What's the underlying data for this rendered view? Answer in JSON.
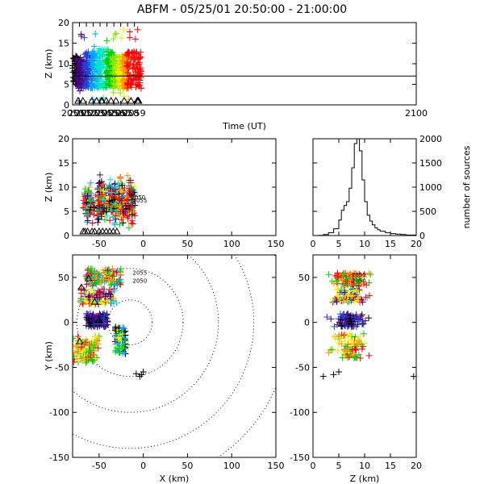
{
  "title": "ABFM - 05/25/01 20:50:00 - 21:00:00",
  "chart_data": [
    {
      "id": "time_height",
      "type": "scatter",
      "xlabel": "Time (UT)",
      "ylabel": "Z (km)",
      "xlim": [
        2050,
        2100
      ],
      "ylim": [
        0,
        20
      ],
      "xticks": [
        "2050",
        "2051",
        "2052",
        "2053",
        "2054",
        "2055",
        "2056",
        "2057",
        "2058",
        "2059",
        "2100"
      ],
      "yticks": [
        0,
        5,
        10,
        15,
        20
      ],
      "reference_line_z": 7,
      "station_triangles_time": [
        2050.8,
        2051.5,
        2052.8,
        2053.5,
        2054.2,
        2054.3,
        2054.9,
        2055.6,
        2056.3,
        2057.5,
        2058.5,
        2059.4,
        2059.5,
        2059.6
      ],
      "series": [
        {
          "time_range": [
            2050.0,
            2051.3
          ],
          "z_range": [
            5,
            12
          ],
          "color": "#000000",
          "density": 0.9
        },
        {
          "time_range": [
            2050.6,
            2052.2
          ],
          "z_range": [
            4,
            11
          ],
          "color": "#4b0082",
          "density": 1.0
        },
        {
          "time_range": [
            2051.6,
            2053.0
          ],
          "z_range": [
            4,
            13
          ],
          "color": "#2a3dd4",
          "density": 0.9
        },
        {
          "time_range": [
            2052.6,
            2054.0
          ],
          "z_range": [
            4,
            13
          ],
          "color": "#00a8ff",
          "density": 0.9
        },
        {
          "time_range": [
            2053.6,
            2055.2
          ],
          "z_range": [
            4,
            14
          ],
          "color": "#00e6c8",
          "density": 0.9
        },
        {
          "time_range": [
            2054.8,
            2056.2
          ],
          "z_range": [
            4,
            13
          ],
          "color": "#00d000",
          "density": 0.9
        },
        {
          "time_range": [
            2055.8,
            2057.0
          ],
          "z_range": [
            4,
            12
          ],
          "color": "#8ce600",
          "density": 0.8
        },
        {
          "time_range": [
            2056.6,
            2057.6
          ],
          "z_range": [
            4,
            12
          ],
          "color": "#f0f000",
          "density": 0.8
        },
        {
          "time_range": [
            2057.2,
            2058.2
          ],
          "z_range": [
            4,
            12
          ],
          "color": "#ff9a00",
          "density": 0.9
        },
        {
          "time_range": [
            2057.8,
            2060.0
          ],
          "z_range": [
            4,
            13
          ],
          "color": "#ff0000",
          "density": 1.2
        }
      ]
    },
    {
      "id": "x_z",
      "type": "scatter",
      "ylabel": "Z (km)",
      "xlim": [
        -80,
        150
      ],
      "ylim": [
        0,
        20
      ],
      "xticks": [
        -50,
        0,
        50,
        100,
        150
      ],
      "yticks": [
        0,
        5,
        10,
        15,
        20
      ],
      "annotations": [
        {
          "text": "2050",
          "x": -14,
          "z": 7.5
        },
        {
          "text": "2055",
          "x": -12,
          "z": 6.8
        }
      ],
      "station_triangles_x": [
        -68,
        -66,
        -63,
        -58,
        -55,
        -50,
        -46,
        -42,
        -38,
        -34,
        -30
      ]
    },
    {
      "id": "z_histogram",
      "type": "line",
      "ylabel": "number of sources",
      "xlim": [
        0,
        20
      ],
      "ylim": [
        0,
        2000
      ],
      "xticks": [
        0,
        5,
        10,
        15,
        20
      ],
      "yticks": [
        0,
        500,
        1000,
        1500,
        2000
      ],
      "x": [
        0,
        1,
        2,
        3,
        4,
        5,
        5.5,
        6,
        6.5,
        7,
        7.5,
        8,
        8.5,
        9,
        9.5,
        10,
        10.5,
        11,
        11.5,
        12,
        12.5,
        13,
        14,
        15,
        16,
        17,
        18,
        20
      ],
      "values": [
        0,
        5,
        20,
        60,
        140,
        320,
        520,
        620,
        700,
        980,
        1400,
        1900,
        2000,
        1750,
        1150,
        700,
        420,
        300,
        220,
        160,
        120,
        90,
        60,
        40,
        30,
        20,
        10,
        0
      ]
    },
    {
      "id": "plan_view",
      "type": "scatter",
      "xlabel": "X (km)",
      "ylabel": "Y (km)",
      "xlim": [
        -80,
        150
      ],
      "ylim": [
        -150,
        75
      ],
      "xticks": [
        -50,
        0,
        50,
        100,
        150
      ],
      "yticks": [
        -150,
        -100,
        -50,
        0,
        50
      ],
      "range_rings_center": [
        -15,
        0
      ],
      "range_rings_radii": [
        25,
        60,
        100,
        140,
        180
      ],
      "annotations": [
        {
          "text": "2055",
          "x": -12,
          "y": 53
        },
        {
          "text": "2050",
          "x": -12,
          "y": 44
        }
      ],
      "clusters": [
        {
          "name": "north",
          "x_range": [
            -65,
            -25
          ],
          "y_range": [
            40,
            60
          ],
          "colors": [
            "#ff0000",
            "#ff9a00",
            "#00d000",
            "#00a8ff"
          ]
        },
        {
          "name": "northwest",
          "x_range": [
            -72,
            -30
          ],
          "y_range": [
            20,
            38
          ],
          "colors": [
            "#ff0000",
            "#f0f000",
            "#00e6c8",
            "#4b0082"
          ]
        },
        {
          "name": "west",
          "x_range": [
            -65,
            -40
          ],
          "y_range": [
            -5,
            10
          ],
          "colors": [
            "#000000",
            "#4b0082",
            "#2a3dd4"
          ]
        },
        {
          "name": "southwest",
          "x_range": [
            -80,
            -50
          ],
          "y_range": [
            -45,
            -15
          ],
          "colors": [
            "#ff0000",
            "#ff9a00",
            "#f0f000",
            "#00d000"
          ]
        },
        {
          "name": "south-center",
          "x_range": [
            -32,
            -20
          ],
          "y_range": [
            -35,
            -5
          ],
          "colors": [
            "#f0f000",
            "#00a8ff",
            "#00d000",
            "#000000"
          ]
        }
      ]
    },
    {
      "id": "z_y",
      "type": "scatter",
      "xlabel": "Z (km)",
      "xlim": [
        0,
        20
      ],
      "ylim": [
        -150,
        75
      ],
      "xticks": [
        0,
        5,
        10,
        15,
        20
      ],
      "yticks": [
        -150,
        -100,
        -50,
        0,
        50
      ],
      "annotations": [
        {
          "text": "2055",
          "z": 7.5,
          "y": 51
        },
        {
          "text": "2050",
          "z": 7.5,
          "y": 44
        }
      ]
    }
  ]
}
